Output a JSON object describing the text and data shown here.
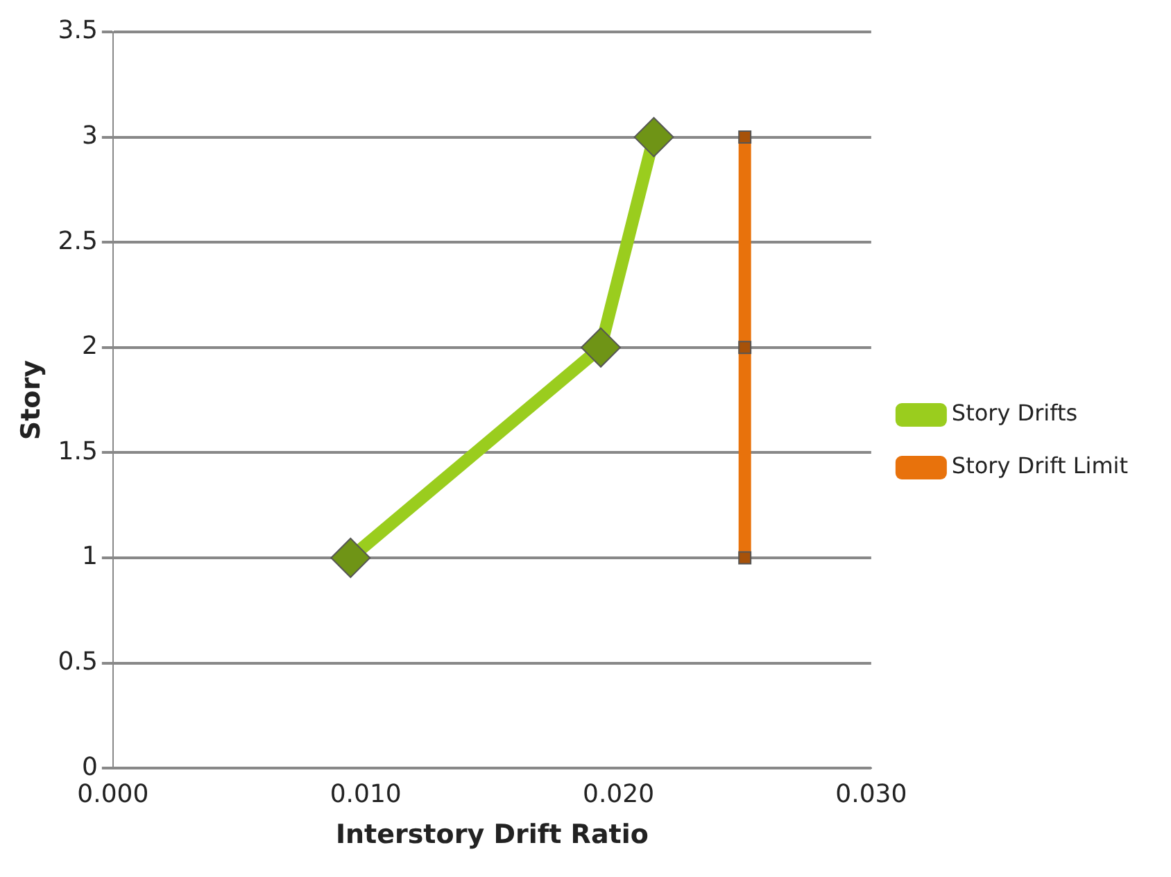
{
  "chart_data": {
    "type": "line",
    "xlabel": "Interstory Drift Ratio",
    "ylabel": "Story",
    "xlim": [
      0,
      0.03
    ],
    "xticks": [
      {
        "value": 0,
        "label": "0.000"
      },
      {
        "value": 0.01,
        "label": "0.010"
      },
      {
        "value": 0.02,
        "label": "0.020"
      },
      {
        "value": 0.03,
        "label": "0.030"
      }
    ],
    "ylim": [
      0,
      3.5
    ],
    "yticks": [
      0,
      0.5,
      1,
      1.5,
      2,
      2.5,
      3,
      3.5
    ],
    "grid": "y",
    "legend": "right",
    "series": [
      {
        "name": "Story Drifts",
        "color": "#9acd1e",
        "x": [
          0.0094,
          0.0193,
          0.0214
        ],
        "values": [
          1,
          2,
          3
        ],
        "marker": "diamond"
      },
      {
        "name": "Story Drift Limit",
        "color": "#e8720c",
        "x": [
          0.025,
          0.025,
          0.025
        ],
        "values": [
          1,
          2,
          3
        ],
        "marker": "square"
      }
    ]
  }
}
